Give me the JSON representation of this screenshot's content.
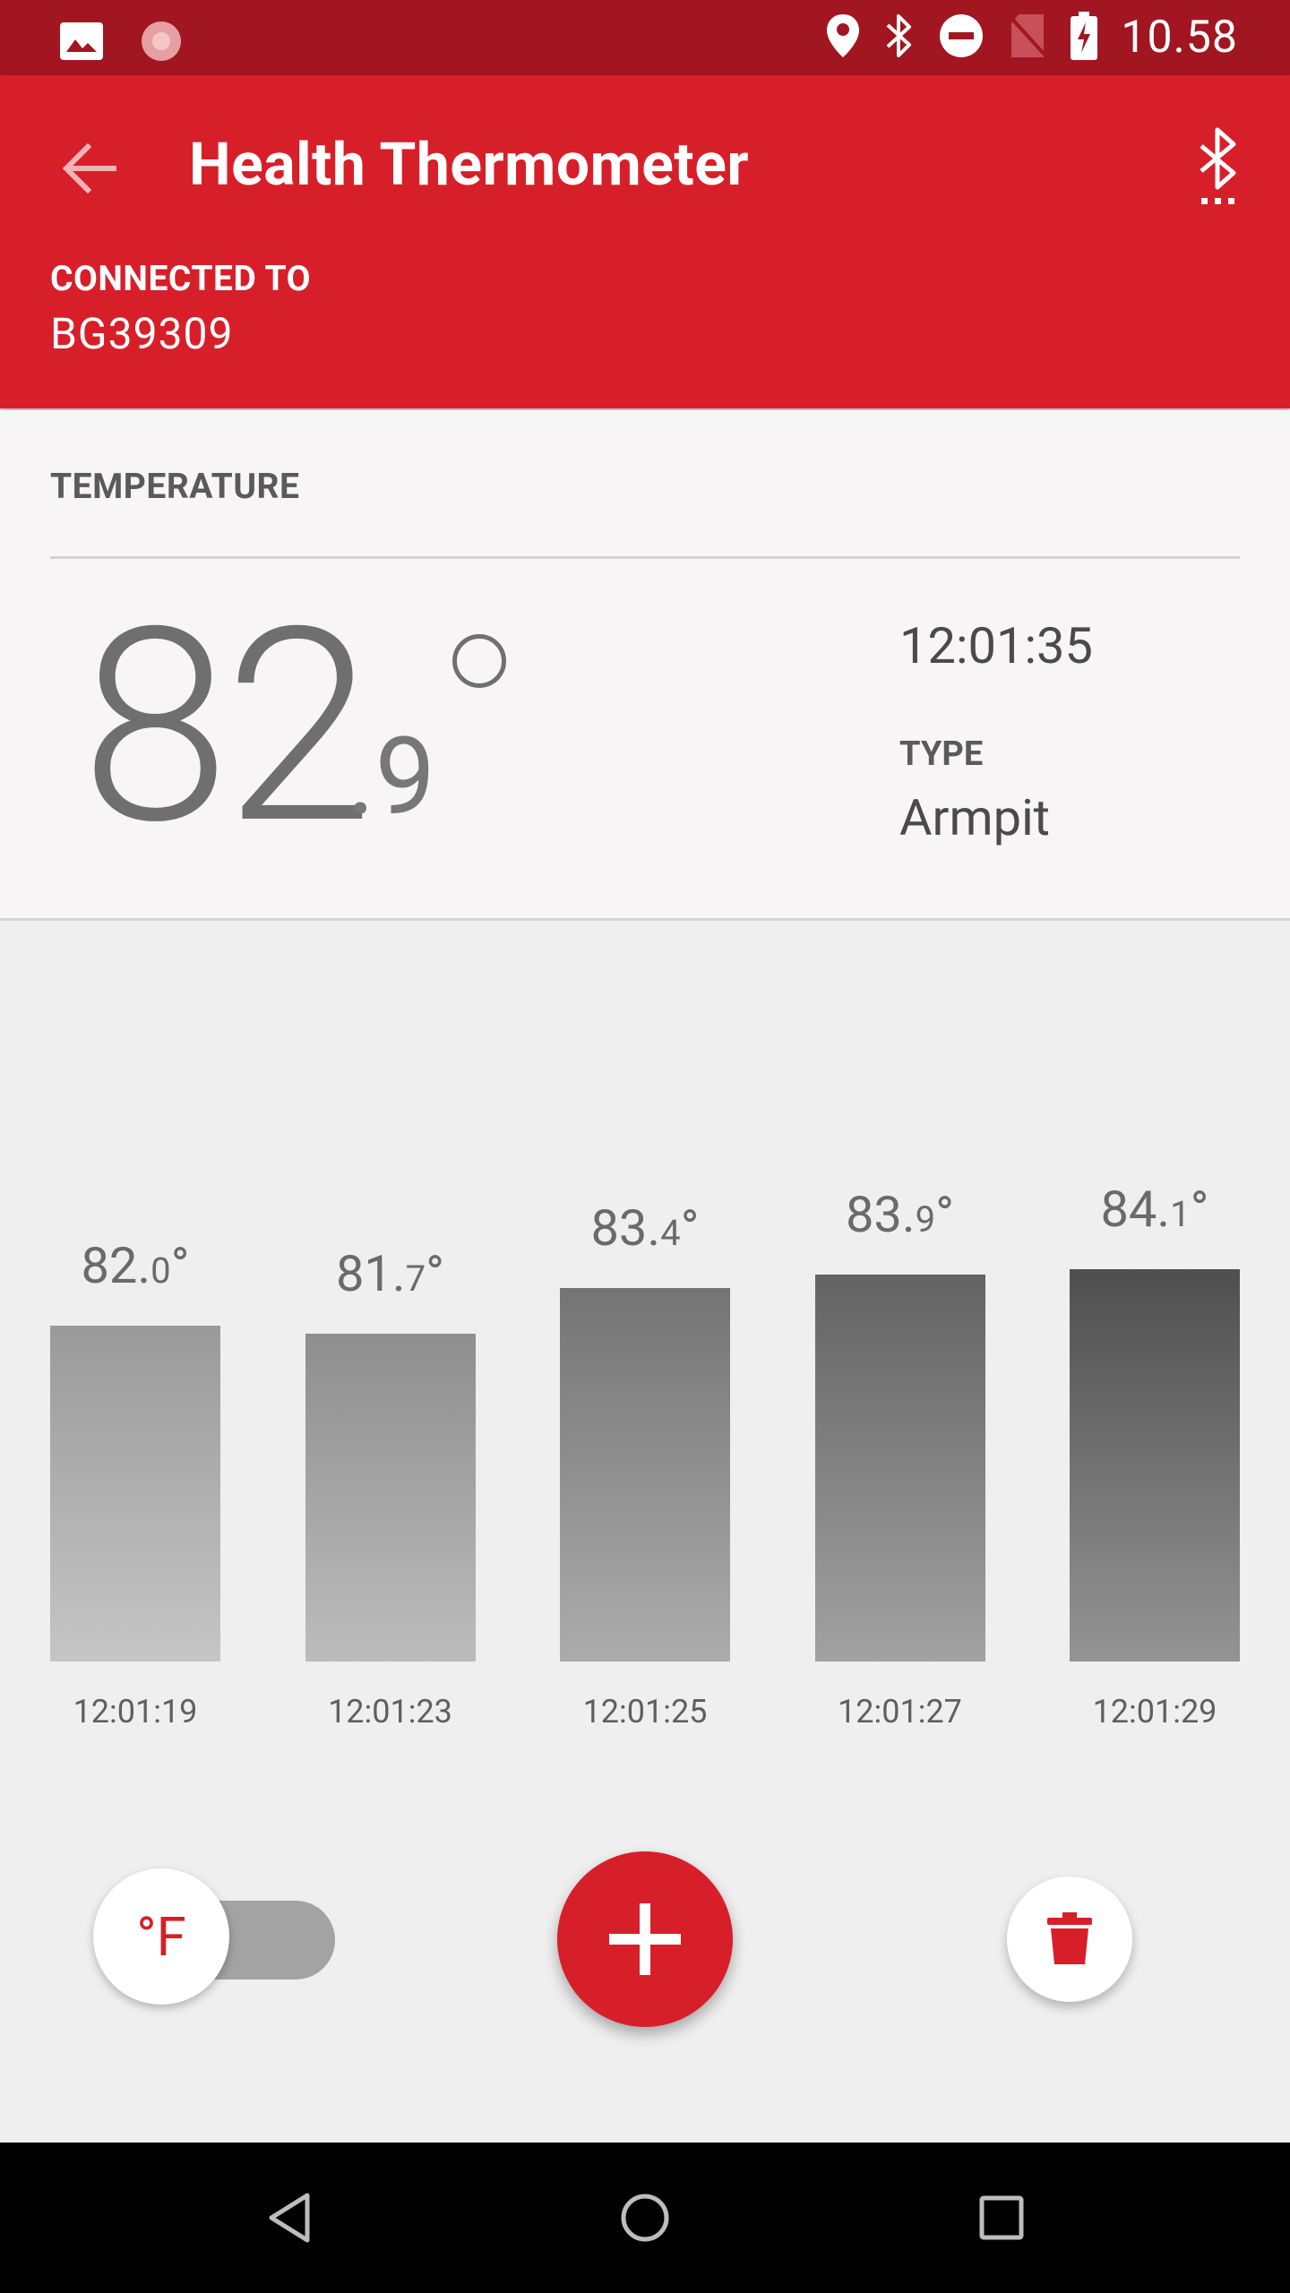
{
  "status_bar": {
    "time": "10.58",
    "icons": [
      "image-icon",
      "loading-icon",
      "location-icon",
      "bluetooth-icon",
      "do-not-disturb-icon",
      "no-sim-icon",
      "battery-charging-icon"
    ]
  },
  "app_bar": {
    "title": "Health Thermometer",
    "connected_label": "CONNECTED TO",
    "device_name": "BG39309"
  },
  "temperature": {
    "section_label": "TEMPERATURE",
    "value_integer": "82",
    "value_decimal": "9",
    "unit_symbol": "°",
    "time": "12:01:35",
    "type_label": "TYPE",
    "type_value": "Armpit"
  },
  "chart_data": {
    "type": "bar",
    "categories": [
      "12:01:19",
      "12:01:23",
      "12:01:25",
      "12:01:27",
      "12:01:29"
    ],
    "values": [
      82.0,
      81.7,
      83.4,
      83.9,
      84.1
    ],
    "value_labels": [
      {
        "int": "82.",
        "dec": "0",
        "deg": "°"
      },
      {
        "int": "81.",
        "dec": "7",
        "deg": "°"
      },
      {
        "int": "83.",
        "dec": "4",
        "deg": "°"
      },
      {
        "int": "83.",
        "dec": "9",
        "deg": "°"
      },
      {
        "int": "84.",
        "dec": "1",
        "deg": "°"
      }
    ],
    "title": "",
    "xlabel": "",
    "ylabel": "",
    "ylim": [
      78,
      85
    ]
  },
  "controls": {
    "unit_label": "°F"
  },
  "colors": {
    "accent": "#d71f2a",
    "status_bar": "#a11620",
    "toggle_track": "#a3a3a3"
  }
}
